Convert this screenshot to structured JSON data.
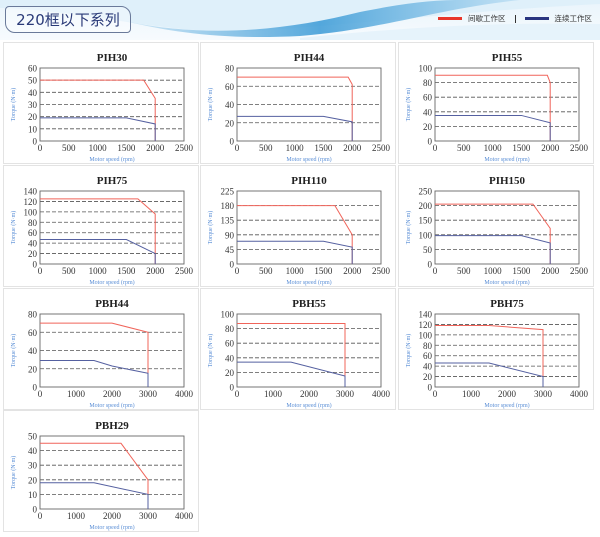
{
  "header": {
    "title": "220框以下系列",
    "legend": [
      {
        "label": "间歇工作区",
        "color": "#e8362a"
      },
      {
        "label": "连续工作区",
        "color": "#2a3580"
      }
    ]
  },
  "colors": {
    "intermittent": "#f0645a",
    "continuous": "#5560a0",
    "axis_label": "#5b8fd6",
    "grid": "#555555"
  },
  "chart_data": [
    {
      "type": "line",
      "title": "PIH30",
      "xlabel": "Motor speed (rpm)",
      "ylabel": "Torque (N·m)",
      "xlim": [
        0,
        2500
      ],
      "xticks": [
        0,
        500,
        1000,
        1500,
        2000,
        2500
      ],
      "ylim": [
        0,
        60
      ],
      "yticks": [
        0,
        10,
        20,
        30,
        40,
        50,
        60
      ],
      "grid": "dashed horizontal",
      "series": [
        {
          "name": "间歇工作区",
          "points": [
            [
              0,
              50
            ],
            [
              1800,
              50
            ],
            [
              2000,
              35
            ],
            [
              2000,
              0
            ]
          ]
        },
        {
          "name": "连续工作区",
          "points": [
            [
              0,
              19
            ],
            [
              1500,
              19
            ],
            [
              2000,
              14
            ],
            [
              2000,
              0
            ]
          ]
        }
      ]
    },
    {
      "type": "line",
      "title": "PIH44",
      "xlabel": "Motor speed (rpm)",
      "ylabel": "Torque (N·m)",
      "xlim": [
        0,
        2500
      ],
      "xticks": [
        0,
        500,
        1000,
        1500,
        2000,
        2500
      ],
      "ylim": [
        0,
        80
      ],
      "yticks": [
        0,
        20,
        40,
        60,
        80
      ],
      "grid": "dashed horizontal",
      "series": [
        {
          "name": "间歇工作区",
          "points": [
            [
              0,
              70
            ],
            [
              1930,
              70
            ],
            [
              2000,
              62
            ],
            [
              2000,
              0
            ]
          ]
        },
        {
          "name": "连续工作区",
          "points": [
            [
              0,
              27
            ],
            [
              1500,
              27
            ],
            [
              2000,
              21
            ],
            [
              2000,
              0
            ]
          ]
        }
      ]
    },
    {
      "type": "line",
      "title": "PIH55",
      "xlabel": "Motor speed (rpm)",
      "ylabel": "Torque (N·m)",
      "xlim": [
        0,
        2500
      ],
      "xticks": [
        0,
        500,
        1000,
        1500,
        2000,
        2500
      ],
      "ylim": [
        0,
        100
      ],
      "yticks": [
        0,
        20,
        40,
        60,
        80,
        100
      ],
      "grid": "dashed horizontal",
      "series": [
        {
          "name": "间歇工作区",
          "points": [
            [
              0,
              90
            ],
            [
              1950,
              90
            ],
            [
              2000,
              80
            ],
            [
              2000,
              0
            ]
          ]
        },
        {
          "name": "连续工作区",
          "points": [
            [
              0,
              35
            ],
            [
              1500,
              35
            ],
            [
              2000,
              25
            ],
            [
              2000,
              0
            ]
          ]
        }
      ]
    },
    {
      "type": "line",
      "title": "PIH75",
      "xlabel": "Motor speed (rpm)",
      "ylabel": "Torque (N·m)",
      "xlim": [
        0,
        2500
      ],
      "xticks": [
        0,
        500,
        1000,
        1500,
        2000,
        2500
      ],
      "ylim": [
        0,
        140
      ],
      "yticks": [
        0,
        20,
        40,
        60,
        80,
        100,
        120,
        140
      ],
      "grid": "dashed horizontal",
      "series": [
        {
          "name": "间歇工作区",
          "points": [
            [
              0,
              125
            ],
            [
              1700,
              125
            ],
            [
              2000,
              96
            ],
            [
              2000,
              0
            ]
          ]
        },
        {
          "name": "连续工作区",
          "points": [
            [
              0,
              47
            ],
            [
              1500,
              47
            ],
            [
              2000,
              20
            ],
            [
              2000,
              0
            ]
          ]
        }
      ]
    },
    {
      "type": "line",
      "title": "PIH110",
      "xlabel": "Motor speed (rpm)",
      "ylabel": "Torque (N·m)",
      "xlim": [
        0,
        2500
      ],
      "xticks": [
        0,
        500,
        1000,
        1500,
        2000,
        2500
      ],
      "ylim": [
        0,
        225
      ],
      "yticks": [
        0,
        45,
        90,
        135,
        180,
        225
      ],
      "grid": "dashed horizontal",
      "series": [
        {
          "name": "间歇工作区",
          "points": [
            [
              0,
              180
            ],
            [
              1700,
              180
            ],
            [
              2000,
              90
            ],
            [
              2000,
              0
            ]
          ]
        },
        {
          "name": "连续工作区",
          "points": [
            [
              0,
              70
            ],
            [
              1500,
              70
            ],
            [
              2000,
              52
            ],
            [
              2000,
              0
            ]
          ]
        }
      ]
    },
    {
      "type": "line",
      "title": "PIH150",
      "xlabel": "Motor speed (rpm)",
      "ylabel": "Torque (N·m)",
      "xlim": [
        0,
        2500
      ],
      "xticks": [
        0,
        500,
        1000,
        1500,
        2000,
        2500
      ],
      "ylim": [
        0,
        250
      ],
      "yticks": [
        0,
        50,
        100,
        150,
        200,
        250
      ],
      "grid": "dashed horizontal",
      "series": [
        {
          "name": "间歇工作区",
          "points": [
            [
              0,
              205
            ],
            [
              1700,
              205
            ],
            [
              2000,
              122
            ],
            [
              2000,
              0
            ]
          ]
        },
        {
          "name": "连续工作区",
          "points": [
            [
              0,
              97
            ],
            [
              1500,
              97
            ],
            [
              2000,
              72
            ],
            [
              2000,
              0
            ]
          ]
        }
      ]
    },
    {
      "type": "line",
      "title": "PBH44",
      "xlabel": "Motor speed (rpm)",
      "ylabel": "Torque (N·m)",
      "xlim": [
        0,
        4000
      ],
      "xticks": [
        0,
        1000,
        2000,
        3000,
        4000
      ],
      "ylim": [
        0,
        80
      ],
      "yticks": [
        0,
        20,
        40,
        60,
        80
      ],
      "grid": "dashed horizontal",
      "series": [
        {
          "name": "间歇工作区",
          "points": [
            [
              0,
              70
            ],
            [
              2000,
              70
            ],
            [
              3000,
              60
            ],
            [
              3000,
              0
            ]
          ]
        },
        {
          "name": "连续工作区",
          "points": [
            [
              0,
              29
            ],
            [
              1500,
              29
            ],
            [
              2000,
              23
            ],
            [
              3000,
              15
            ],
            [
              3000,
              0
            ]
          ]
        }
      ]
    },
    {
      "type": "line",
      "title": "PBH55",
      "xlabel": "Motor speed (rpm)",
      "ylabel": "Torque (N·m)",
      "xlim": [
        0,
        4000
      ],
      "xticks": [
        0,
        1000,
        2000,
        3000,
        4000
      ],
      "ylim": [
        0,
        100
      ],
      "yticks": [
        0,
        20,
        40,
        60,
        80,
        100
      ],
      "grid": "dashed horizontal",
      "series": [
        {
          "name": "间歇工作区",
          "points": [
            [
              0,
              87
            ],
            [
              3000,
              87
            ],
            [
              3000,
              0
            ]
          ]
        },
        {
          "name": "连续工作区",
          "points": [
            [
              0,
              34
            ],
            [
              1500,
              34
            ],
            [
              3000,
              15
            ],
            [
              3000,
              0
            ]
          ]
        }
      ]
    },
    {
      "type": "line",
      "title": "PBH75",
      "xlabel": "Motor speed (rpm)",
      "ylabel": "Torque (N·m)",
      "xlim": [
        0,
        4000
      ],
      "xticks": [
        0,
        1000,
        2000,
        3000,
        4000
      ],
      "ylim": [
        0,
        140
      ],
      "yticks": [
        0,
        20,
        40,
        60,
        80,
        100,
        120,
        140
      ],
      "grid": "dashed horizontal",
      "series": [
        {
          "name": "间歇工作区",
          "points": [
            [
              0,
              118
            ],
            [
              1500,
              118
            ],
            [
              3000,
              110
            ],
            [
              3000,
              0
            ]
          ]
        },
        {
          "name": "连续工作区",
          "points": [
            [
              0,
              46
            ],
            [
              1500,
              46
            ],
            [
              3000,
              20
            ],
            [
              3000,
              0
            ]
          ]
        }
      ]
    },
    {
      "type": "line",
      "title": "PBH29",
      "xlabel": "Motor speed (rpm)",
      "ylabel": "Torque (N·m)",
      "xlim": [
        0,
        4000
      ],
      "xticks": [
        0,
        1000,
        2000,
        3000,
        4000
      ],
      "ylim": [
        0,
        50
      ],
      "yticks": [
        0,
        10,
        20,
        30,
        40,
        50
      ],
      "grid": "dashed horizontal",
      "series": [
        {
          "name": "间歇工作区",
          "points": [
            [
              0,
              45
            ],
            [
              2250,
              45
            ],
            [
              3000,
              20
            ],
            [
              3000,
              0
            ]
          ]
        },
        {
          "name": "连续工作区",
          "points": [
            [
              0,
              18
            ],
            [
              1500,
              18
            ],
            [
              3000,
              10
            ],
            [
              3000,
              0
            ]
          ]
        }
      ]
    }
  ]
}
